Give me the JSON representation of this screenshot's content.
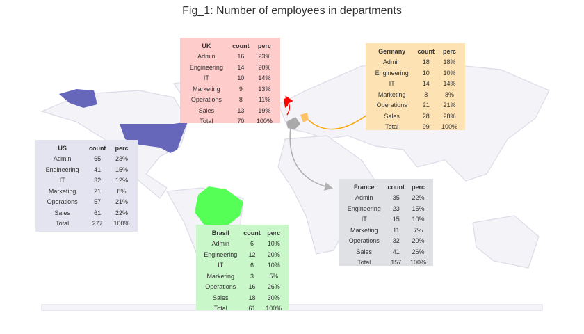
{
  "title": "Fig_1: Number of employees in departments",
  "chart_data": {
    "type": "table",
    "title": "Fig_1: Number of employees in departments",
    "columns": [
      "count",
      "perc"
    ],
    "tables": [
      {
        "country": "UK",
        "color": "#ffcccc",
        "rows": [
          [
            "Admin",
            16,
            "23%"
          ],
          [
            "Engineering",
            14,
            "20%"
          ],
          [
            "IT",
            10,
            "14%"
          ],
          [
            "Marketing",
            9,
            "13%"
          ],
          [
            "Operations",
            8,
            "11%"
          ],
          [
            "Sales",
            13,
            "19%"
          ],
          [
            "Total",
            70,
            "100%"
          ]
        ]
      },
      {
        "country": "Germany",
        "color": "#fde2b4",
        "rows": [
          [
            "Admin",
            18,
            "18%"
          ],
          [
            "Engineering",
            10,
            "10%"
          ],
          [
            "IT",
            14,
            "14%"
          ],
          [
            "Marketing",
            8,
            "8%"
          ],
          [
            "Operations",
            21,
            "21%"
          ],
          [
            "Sales",
            28,
            "28%"
          ],
          [
            "Total",
            99,
            "100%"
          ]
        ]
      },
      {
        "country": "US",
        "color": "#e4e4f0",
        "rows": [
          [
            "Admin",
            65,
            "23%"
          ],
          [
            "Engineering",
            41,
            "15%"
          ],
          [
            "IT",
            32,
            "12%"
          ],
          [
            "Marketing",
            21,
            "8%"
          ],
          [
            "Operations",
            57,
            "21%"
          ],
          [
            "Sales",
            61,
            "22%"
          ],
          [
            "Total",
            277,
            "100%"
          ]
        ]
      },
      {
        "country": "France",
        "color": "#dfe1e5",
        "rows": [
          [
            "Admin",
            35,
            "22%"
          ],
          [
            "Engineering",
            23,
            "15%"
          ],
          [
            "IT",
            15,
            "10%"
          ],
          [
            "Marketing",
            11,
            "7%"
          ],
          [
            "Operations",
            32,
            "20%"
          ],
          [
            "Sales",
            41,
            "26%"
          ],
          [
            "Total",
            157,
            "100%"
          ]
        ]
      },
      {
        "country": "Brasil",
        "color": "#c9f7c9",
        "rows": [
          [
            "Admin",
            6,
            "10%"
          ],
          [
            "Engineering",
            12,
            "20%"
          ],
          [
            "IT",
            6,
            "10%"
          ],
          [
            "Marketing",
            3,
            "5%"
          ],
          [
            "Operations",
            16,
            "26%"
          ],
          [
            "Sales",
            18,
            "30%"
          ],
          [
            "Total",
            61,
            "100%"
          ]
        ]
      }
    ],
    "country_colors": {
      "US": "#6666bb",
      "Brasil": "#55ff55",
      "UK": "#ff0000",
      "Germany": "#ffc266",
      "France": "#aaaaaa"
    }
  }
}
